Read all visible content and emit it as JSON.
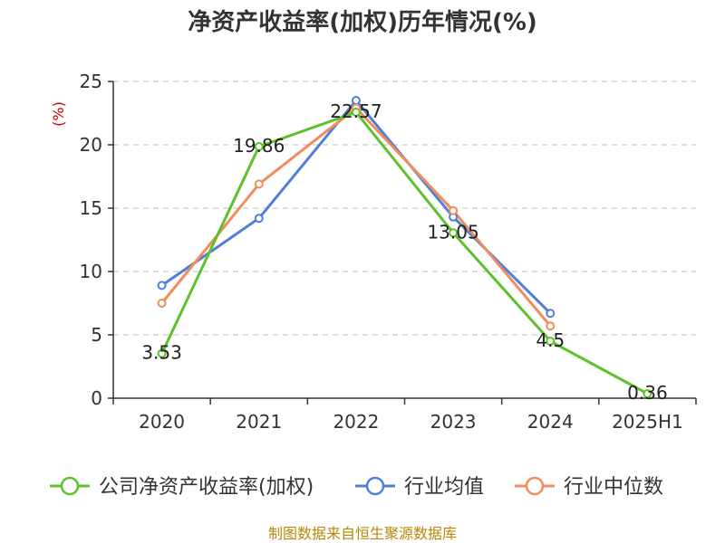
{
  "chart_data": {
    "type": "line",
    "title": "净资产收益率(加权)历年情况(%)",
    "ylabel": "(%)",
    "categories": [
      "2020",
      "2021",
      "2022",
      "2023",
      "2024",
      "2025H1"
    ],
    "ylim": [
      0,
      25
    ],
    "yticks": [
      0,
      5,
      10,
      15,
      20,
      25
    ],
    "grid": true,
    "legend_position": "bottom",
    "series": [
      {
        "name": "公司净资产收益率(加权)",
        "color": "#5cc22b",
        "values": [
          3.53,
          19.86,
          22.57,
          13.05,
          4.5,
          0.36
        ],
        "labels": [
          "3.53",
          "19.86",
          "22.57",
          "13.05",
          "4.5",
          "0.36"
        ]
      },
      {
        "name": "行业均值",
        "color": "#4f7fd6",
        "values": [
          8.9,
          14.2,
          23.5,
          14.3,
          6.7,
          null
        ]
      },
      {
        "name": "行业中位数",
        "color": "#f28c5c",
        "values": [
          7.5,
          16.9,
          22.9,
          14.8,
          5.7,
          null
        ]
      }
    ]
  },
  "footer": {
    "source": "制图数据来自恒生聚源数据库"
  }
}
